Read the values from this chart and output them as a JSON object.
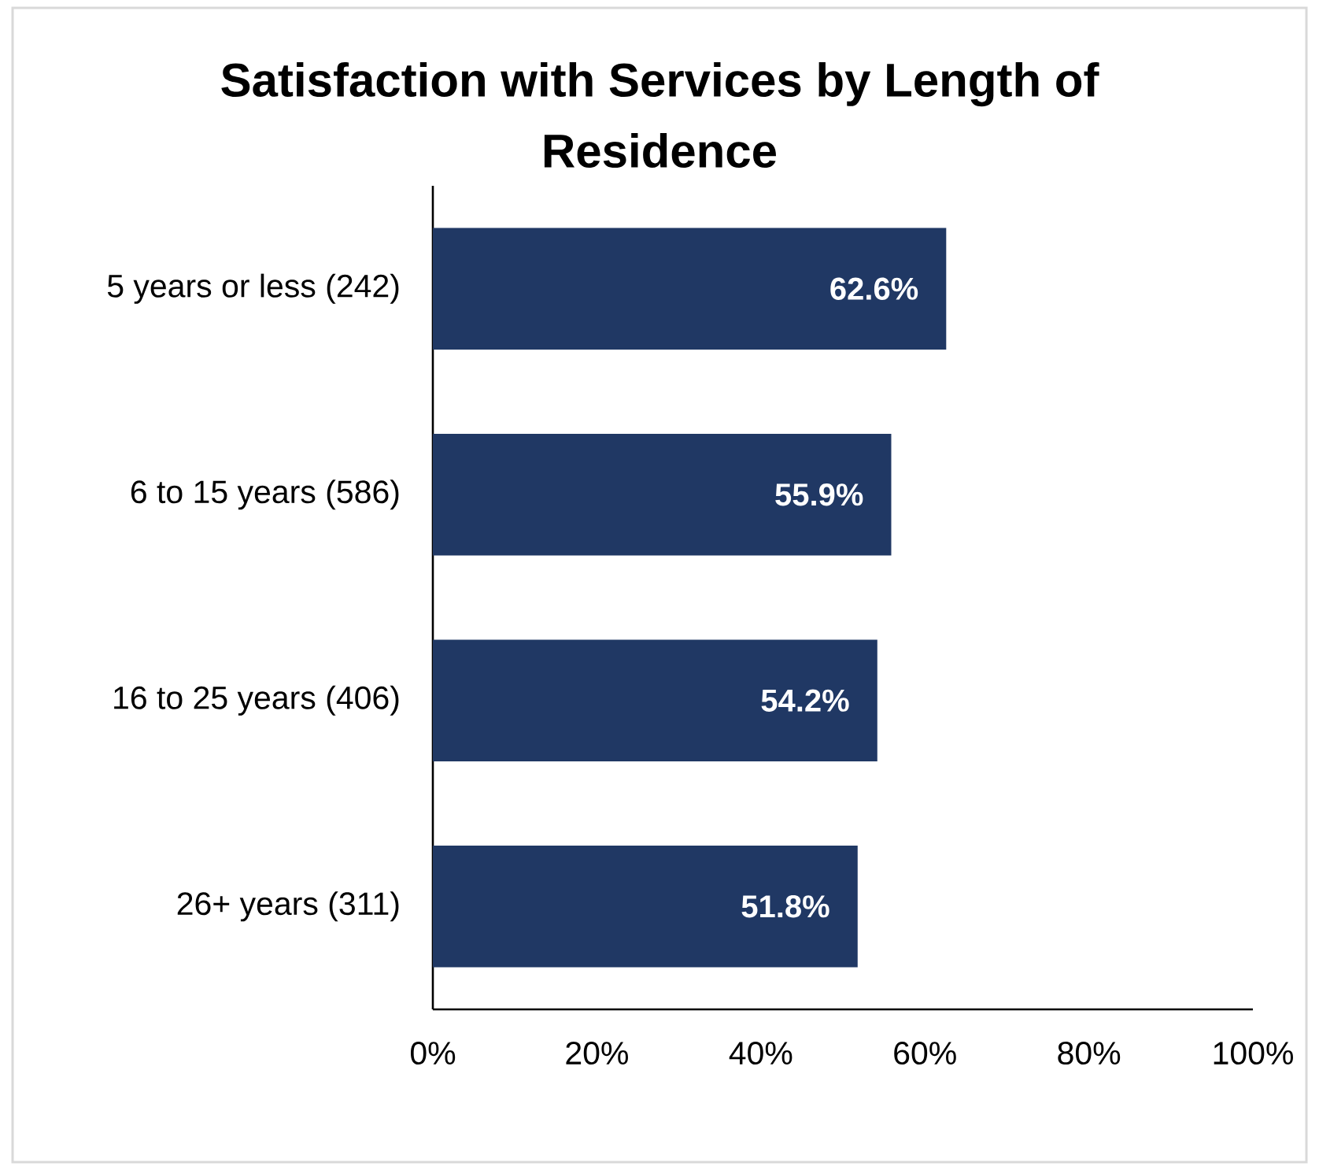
{
  "chart_data": {
    "type": "bar",
    "orientation": "horizontal",
    "title": "Satisfaction with Services by Length of Residence",
    "categories": [
      "5 years or less (242)",
      "6 to 15 years (586)",
      "16 to 25 years (406)",
      "26+ years (311)"
    ],
    "values": [
      62.6,
      55.9,
      54.2,
      51.8
    ],
    "value_labels": [
      "62.6%",
      "55.9%",
      "54.2%",
      "51.8%"
    ],
    "color": "#203864",
    "xlim": [
      0,
      100
    ],
    "xticks": [
      {
        "value": 0,
        "label": "0%"
      },
      {
        "value": 20,
        "label": "20%"
      },
      {
        "value": 40,
        "label": "40%"
      },
      {
        "value": 60,
        "label": "60%"
      },
      {
        "value": 80,
        "label": "80%"
      },
      {
        "value": 100,
        "label": "100%"
      }
    ]
  }
}
